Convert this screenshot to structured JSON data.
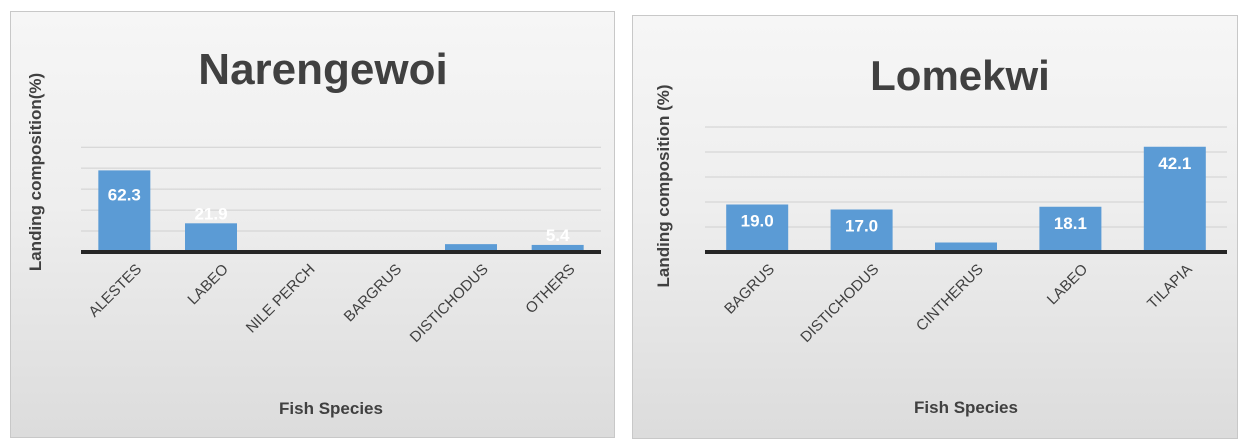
{
  "chart_data": [
    {
      "type": "bar",
      "title": "Narengewoi",
      "xlabel": "Fish Species",
      "ylabel": "Landing composition(%)",
      "categories": [
        "ALESTES",
        "LABEO",
        "NILE PERCH",
        "BARGRUS",
        "DISTICHODUS",
        "OTHERS"
      ],
      "values": [
        62.3,
        21.9,
        0.4,
        0.3,
        6.0,
        5.4
      ],
      "data_labels": [
        "62.3",
        "21.9",
        "",
        "",
        "",
        "5.4"
      ],
      "ylim": [
        0,
        80
      ],
      "grid": true,
      "bar_color": "#5b9bd5"
    },
    {
      "type": "bar",
      "title": "Lomekwi",
      "xlabel": "Fish Species",
      "ylabel": "Landing composition (%)",
      "categories": [
        "BAGRUS",
        "DISTICHODUS",
        "CINTHERUS",
        "LABEO",
        "TILAPIA"
      ],
      "values": [
        19.0,
        17.0,
        3.8,
        18.1,
        42.1
      ],
      "data_labels": [
        "19.0",
        "17.0",
        "",
        "18.1",
        "42.1"
      ],
      "ylim": [
        0,
        50
      ],
      "grid": true,
      "bar_color": "#5b9bd5"
    }
  ]
}
